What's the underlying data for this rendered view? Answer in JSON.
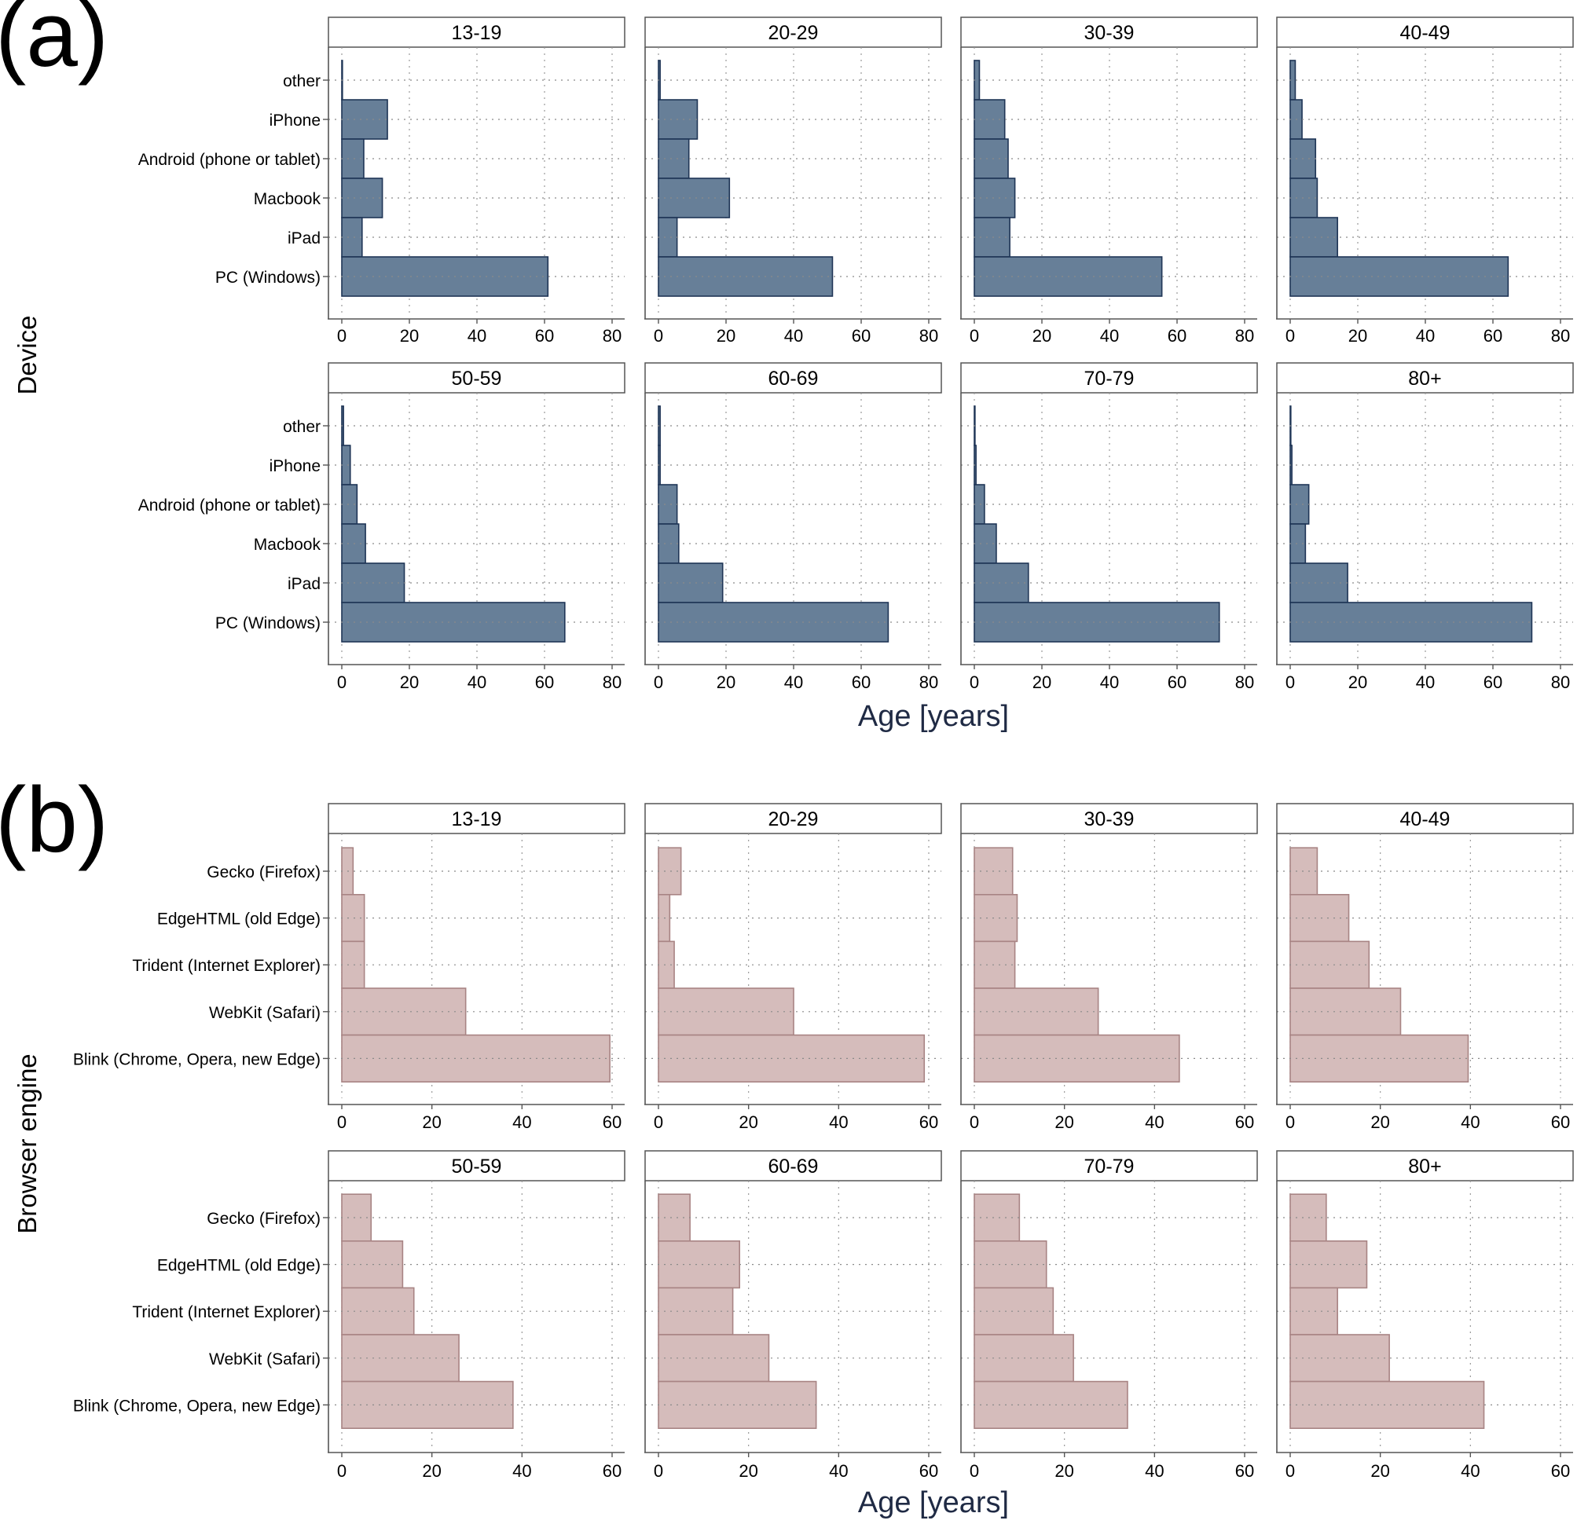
{
  "figure": {
    "xlabel": "Age [years]",
    "facet_labels": [
      "13-19",
      "20-29",
      "30-39",
      "40-49",
      "50-59",
      "60-69",
      "70-79",
      "80+"
    ]
  },
  "colors": {
    "device_fill": "#677f98",
    "device_stroke": "#1f3556",
    "browser_fill": "#d5bcbb",
    "browser_stroke": "#a88484",
    "axis_title": "#1f2a44"
  },
  "chart_data": [
    {
      "type": "bar",
      "orientation": "horizontal",
      "panel_label": "(a)",
      "ylabel": "Device",
      "xlabel": "Age [years]",
      "categories": [
        "other",
        "iPhone",
        "Android (phone or tablet)",
        "Macbook",
        "iPad",
        "PC (Windows)"
      ],
      "xlim": [
        0,
        85
      ],
      "xticks": [
        0,
        20,
        40,
        60,
        80
      ],
      "grid": true,
      "series": [
        {
          "name": "13-19",
          "values": [
            0,
            13.5,
            6.5,
            12,
            6,
            61
          ]
        },
        {
          "name": "20-29",
          "values": [
            0.5,
            11.5,
            9,
            21,
            5.5,
            51.5
          ]
        },
        {
          "name": "30-39",
          "values": [
            1.5,
            9,
            10,
            12,
            10.5,
            55.5
          ]
        },
        {
          "name": "40-49",
          "values": [
            1.5,
            3.5,
            7.5,
            8,
            14,
            64.5
          ]
        },
        {
          "name": "50-59",
          "values": [
            0.5,
            2.5,
            4.5,
            7,
            18.5,
            66
          ]
        },
        {
          "name": "60-69",
          "values": [
            0.5,
            0.5,
            5.5,
            6,
            19,
            68
          ]
        },
        {
          "name": "70-79",
          "values": [
            0.2,
            0.5,
            3,
            6.5,
            16,
            72.5
          ]
        },
        {
          "name": "80+",
          "values": [
            0,
            0.5,
            5.5,
            4.5,
            17,
            71.5
          ]
        }
      ]
    },
    {
      "type": "bar",
      "orientation": "horizontal",
      "panel_label": "(b)",
      "ylabel": "Browser engine",
      "xlabel": "Age [years]",
      "categories": [
        "Gecko (Firefox)",
        "EdgeHTML (old Edge)",
        "Trident (Internet Explorer)",
        "WebKit (Safari)",
        "Blink (Chrome, Opera, new Edge)"
      ],
      "xlim": [
        0,
        63
      ],
      "xticks": [
        0,
        20,
        40,
        60
      ],
      "grid": true,
      "series": [
        {
          "name": "13-19",
          "values": [
            2.5,
            5,
            5,
            27.5,
            59.5
          ]
        },
        {
          "name": "20-29",
          "values": [
            5,
            2.5,
            3.5,
            30,
            59
          ]
        },
        {
          "name": "30-39",
          "values": [
            8.5,
            9.5,
            9,
            27.5,
            45.5
          ]
        },
        {
          "name": "40-49",
          "values": [
            6,
            13,
            17.5,
            24.5,
            39.5
          ]
        },
        {
          "name": "50-59",
          "values": [
            6.5,
            13.5,
            16,
            26,
            38
          ]
        },
        {
          "name": "60-69",
          "values": [
            7,
            18,
            16.5,
            24.5,
            35
          ]
        },
        {
          "name": "70-79",
          "values": [
            10,
            16,
            17.5,
            22,
            34
          ]
        },
        {
          "name": "80+",
          "values": [
            8,
            17,
            10.5,
            22,
            43
          ]
        }
      ]
    }
  ]
}
